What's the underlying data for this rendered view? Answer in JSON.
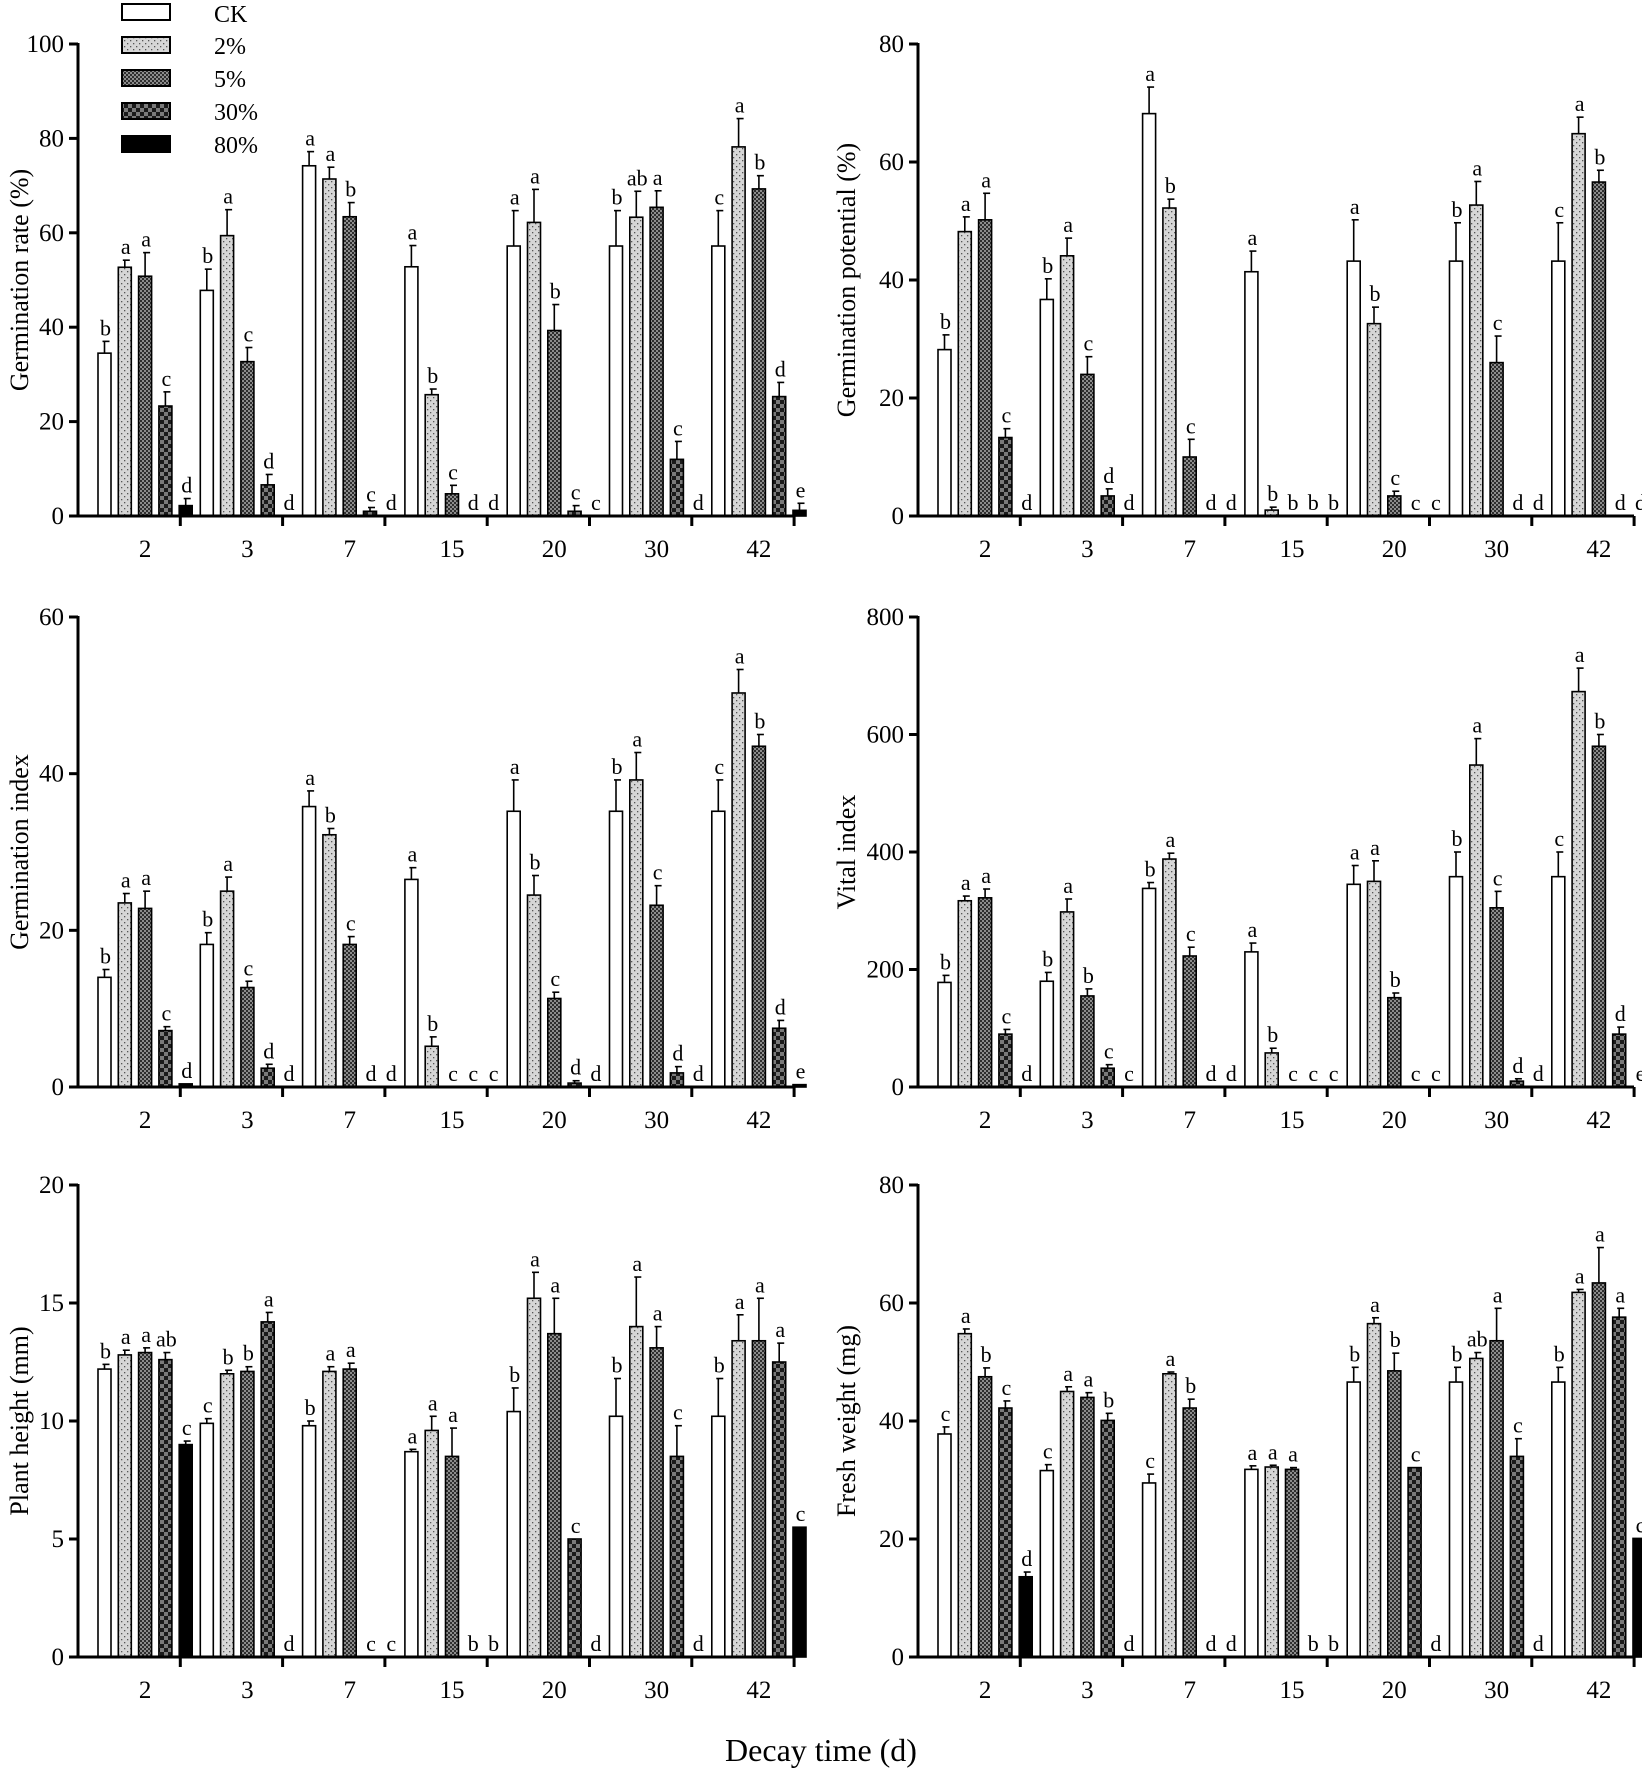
{
  "figure": {
    "xlabel": "Decay time (d)",
    "legend": {
      "position": "top-left",
      "entries": [
        {
          "label": "CK",
          "pattern": "pat-ck"
        },
        {
          "label": "2%",
          "pattern": "pat-2"
        },
        {
          "label": "5%",
          "pattern": "pat-5"
        },
        {
          "label": "30%",
          "pattern": "pat-30"
        },
        {
          "label": "80%",
          "pattern": "pat-80"
        }
      ]
    }
  },
  "chart_data": [
    {
      "type": "bar",
      "ylabel": "Germination rate (%)",
      "categories": [
        "2",
        "3",
        "7",
        "15",
        "20",
        "30",
        "42"
      ],
      "ylim": [
        0,
        100
      ],
      "yticks": [
        0,
        20,
        40,
        60,
        80,
        100
      ],
      "series": [
        {
          "name": "CK",
          "values": [
            34.5,
            47.8,
            74.2,
            52.8,
            57.2,
            57.2,
            57.2
          ],
          "errors": [
            2.5,
            4.5,
            3,
            4.5,
            7.5,
            7.5,
            7.5
          ],
          "labels": [
            "b",
            "b",
            "a",
            "a",
            "a",
            "b",
            "c"
          ]
        },
        {
          "name": "2%",
          "values": [
            52.7,
            59.4,
            71.4,
            25.7,
            62.2,
            63.3,
            78.2
          ],
          "errors": [
            1.5,
            5.5,
            2.5,
            1.2,
            7,
            5.5,
            6
          ],
          "labels": [
            "a",
            "a",
            "a",
            "b",
            "a",
            "ab",
            "a"
          ]
        },
        {
          "name": "5%",
          "values": [
            50.8,
            32.7,
            63.4,
            4.7,
            39.3,
            65.4,
            69.3
          ],
          "errors": [
            5,
            3,
            3,
            1.8,
            5.5,
            3.5,
            2.8
          ],
          "labels": [
            "a",
            "c",
            "b",
            "c",
            "b",
            "a",
            "b"
          ]
        },
        {
          "name": "30%",
          "values": [
            23.3,
            6.6,
            1.0,
            0,
            1.0,
            12.0,
            25.3
          ],
          "errors": [
            3,
            2.2,
            0.8,
            0,
            1.2,
            3.8,
            3
          ],
          "labels": [
            "c",
            "d",
            "c",
            "d",
            "c",
            "c",
            "d"
          ]
        },
        {
          "name": "80%",
          "values": [
            2.2,
            0,
            0,
            0,
            0,
            0,
            1.2
          ],
          "errors": [
            1.5,
            0,
            0,
            0,
            0,
            0,
            1.5
          ],
          "labels": [
            "d",
            "d",
            "d",
            "d",
            "c",
            "d",
            "e"
          ]
        }
      ]
    },
    {
      "type": "bar",
      "ylabel": "Germination potential (%)",
      "categories": [
        "2",
        "3",
        "7",
        "15",
        "20",
        "30",
        "42"
      ],
      "ylim": [
        0,
        80
      ],
      "yticks": [
        0,
        20,
        40,
        60,
        80
      ],
      "series": [
        {
          "name": "CK",
          "values": [
            28.2,
            36.7,
            68.2,
            41.4,
            43.2,
            43.2,
            43.2
          ],
          "errors": [
            2.5,
            3.5,
            4.5,
            3.5,
            7,
            6.5,
            6.5
          ],
          "labels": [
            "b",
            "b",
            "a",
            "a",
            "a",
            "b",
            "c"
          ]
        },
        {
          "name": "2%",
          "values": [
            48.2,
            44.1,
            52.2,
            1.0,
            32.6,
            52.7,
            64.8
          ],
          "errors": [
            2.5,
            3,
            1.5,
            0.5,
            2.8,
            4,
            2.8
          ],
          "labels": [
            "a",
            "a",
            "b",
            "b",
            "b",
            "a",
            "a"
          ]
        },
        {
          "name": "5%",
          "values": [
            50.2,
            24.0,
            10.0,
            0,
            3.4,
            26.0,
            56.6
          ],
          "errors": [
            4.5,
            3,
            3,
            0,
            0.8,
            4.5,
            2
          ],
          "labels": [
            "a",
            "c",
            "c",
            "b",
            "c",
            "c",
            "b"
          ]
        },
        {
          "name": "30%",
          "values": [
            13.3,
            3.4,
            0,
            0,
            0,
            0,
            0
          ],
          "errors": [
            1.5,
            1.2,
            0,
            0,
            0,
            0,
            0
          ],
          "labels": [
            "c",
            "d",
            "d",
            "b",
            "c",
            "d",
            "d"
          ]
        },
        {
          "name": "80%",
          "values": [
            0,
            0,
            0,
            0,
            0,
            0,
            0
          ],
          "errors": [
            0,
            0,
            0,
            0,
            0,
            0,
            0
          ],
          "labels": [
            "d",
            "d",
            "d",
            "b",
            "c",
            "d",
            "d"
          ]
        }
      ]
    },
    {
      "type": "bar",
      "ylabel": "Germination index",
      "categories": [
        "2",
        "3",
        "7",
        "15",
        "20",
        "30",
        "42"
      ],
      "ylim": [
        0,
        60
      ],
      "yticks": [
        0,
        20,
        40,
        60
      ],
      "series": [
        {
          "name": "CK",
          "values": [
            14.0,
            18.2,
            35.8,
            26.5,
            35.2,
            35.2,
            35.2
          ],
          "errors": [
            1,
            1.5,
            2,
            1.5,
            4,
            4,
            4
          ],
          "labels": [
            "b",
            "b",
            "a",
            "a",
            "a",
            "b",
            "c"
          ]
        },
        {
          "name": "2%",
          "values": [
            23.5,
            25.0,
            32.2,
            5.2,
            24.5,
            39.2,
            50.3
          ],
          "errors": [
            1.2,
            1.8,
            0.8,
            1.2,
            2.5,
            3.5,
            3
          ],
          "labels": [
            "a",
            "a",
            "b",
            "b",
            "b",
            "a",
            "a"
          ]
        },
        {
          "name": "5%",
          "values": [
            22.8,
            12.7,
            18.2,
            0,
            11.3,
            23.2,
            43.5
          ],
          "errors": [
            2.2,
            0.8,
            1,
            0,
            0.8,
            2.5,
            1.5
          ],
          "labels": [
            "a",
            "c",
            "c",
            "c",
            "c",
            "c",
            "b"
          ]
        },
        {
          "name": "30%",
          "values": [
            7.2,
            2.4,
            0,
            0,
            0.5,
            1.8,
            7.5
          ],
          "errors": [
            0.5,
            0.5,
            0,
            0,
            0.3,
            0.8,
            1
          ],
          "labels": [
            "c",
            "d",
            "d",
            "c",
            "d",
            "d",
            "d"
          ]
        },
        {
          "name": "80%",
          "values": [
            0.4,
            0,
            0,
            0,
            0,
            0,
            0.3
          ],
          "errors": [
            0,
            0,
            0,
            0,
            0,
            0,
            0
          ],
          "labels": [
            "d",
            "d",
            "d",
            "c",
            "d",
            "d",
            "e"
          ]
        }
      ]
    },
    {
      "type": "bar",
      "ylabel": "Vital  index",
      "categories": [
        "2",
        "3",
        "7",
        "15",
        "20",
        "30",
        "42"
      ],
      "ylim": [
        0,
        800
      ],
      "yticks": [
        0,
        200,
        400,
        600,
        800
      ],
      "series": [
        {
          "name": "CK",
          "values": [
            178,
            180,
            338,
            230,
            345,
            358,
            358
          ],
          "errors": [
            12,
            15,
            10,
            15,
            32,
            42,
            42
          ],
          "labels": [
            "b",
            "b",
            "b",
            "a",
            "a",
            "b",
            "c"
          ]
        },
        {
          "name": "2%",
          "values": [
            317,
            298,
            388,
            58,
            350,
            548,
            673
          ],
          "errors": [
            8,
            22,
            10,
            8,
            35,
            45,
            40
          ],
          "labels": [
            "a",
            "a",
            "a",
            "b",
            "a",
            "a",
            "a"
          ]
        },
        {
          "name": "5%",
          "values": [
            322,
            155,
            223,
            0,
            152,
            305,
            580
          ],
          "errors": [
            15,
            12,
            15,
            0,
            8,
            28,
            20
          ],
          "labels": [
            "a",
            "b",
            "c",
            "c",
            "b",
            "c",
            "b"
          ]
        },
        {
          "name": "30%",
          "values": [
            90,
            32,
            0,
            0,
            0,
            10,
            90
          ],
          "errors": [
            8,
            6,
            0,
            0,
            0,
            4,
            12
          ],
          "labels": [
            "c",
            "c",
            "d",
            "c",
            "c",
            "d",
            "d"
          ]
        },
        {
          "name": "80%",
          "values": [
            0,
            0,
            0,
            0,
            0,
            0,
            0
          ],
          "errors": [
            0,
            0,
            0,
            0,
            0,
            0,
            0
          ],
          "labels": [
            "d",
            "c",
            "d",
            "c",
            "c",
            "d",
            "e"
          ]
        }
      ]
    },
    {
      "type": "bar",
      "ylabel": "Plant height (mm)",
      "categories": [
        "2",
        "3",
        "7",
        "15",
        "20",
        "30",
        "42"
      ],
      "ylim": [
        0,
        20
      ],
      "yticks": [
        0,
        5,
        10,
        15,
        20
      ],
      "series": [
        {
          "name": "CK",
          "values": [
            12.2,
            9.9,
            9.8,
            8.7,
            10.4,
            10.2,
            10.2
          ],
          "errors": [
            0.2,
            0.2,
            0.2,
            0.1,
            1,
            1.6,
            1.6
          ],
          "labels": [
            "b",
            "c",
            "b",
            "a",
            "b",
            "b",
            "b"
          ]
        },
        {
          "name": "2%",
          "values": [
            12.8,
            12.0,
            12.1,
            9.6,
            15.2,
            14.0,
            13.4
          ],
          "errors": [
            0.2,
            0.15,
            0.2,
            0.6,
            1.1,
            2.1,
            1.1
          ],
          "labels": [
            "a",
            "b",
            "a",
            "a",
            "a",
            "a",
            "a"
          ]
        },
        {
          "name": "5%",
          "values": [
            12.9,
            12.1,
            12.2,
            8.5,
            13.7,
            13.1,
            13.4
          ],
          "errors": [
            0.2,
            0.2,
            0.25,
            1.2,
            1.5,
            0.9,
            1.8
          ],
          "labels": [
            "a",
            "b",
            "a",
            "a",
            "a",
            "a",
            "a"
          ]
        },
        {
          "name": "30%",
          "values": [
            12.6,
            14.2,
            0,
            0,
            5.0,
            8.5,
            12.5
          ],
          "errors": [
            0.3,
            0.4,
            0,
            0,
            0,
            1.3,
            0.8
          ],
          "labels": [
            "ab",
            "a",
            "c",
            "b",
            "c",
            "c",
            "a"
          ]
        },
        {
          "name": "80%",
          "values": [
            9.0,
            0,
            0,
            0,
            0,
            0,
            5.5
          ],
          "errors": [
            0.15,
            0,
            0,
            0,
            0,
            0,
            0
          ],
          "labels": [
            "c",
            "d",
            "c",
            "b",
            "d",
            "d",
            "c"
          ]
        }
      ]
    },
    {
      "type": "bar",
      "ylabel": "Fresh weight (mg)",
      "categories": [
        "2",
        "3",
        "7",
        "15",
        "20",
        "30",
        "42"
      ],
      "ylim": [
        0,
        80
      ],
      "yticks": [
        0,
        20,
        40,
        60,
        80
      ],
      "series": [
        {
          "name": "CK",
          "values": [
            37.8,
            31.6,
            29.5,
            31.8,
            46.6,
            46.6,
            46.6
          ],
          "errors": [
            1.2,
            1,
            1.5,
            0.6,
            2.5,
            2.5,
            2.5
          ],
          "labels": [
            "c",
            "c",
            "c",
            "a",
            "b",
            "b",
            "b"
          ]
        },
        {
          "name": "2%",
          "values": [
            54.8,
            45.0,
            48.0,
            32.2,
            56.5,
            50.6,
            61.8
          ],
          "errors": [
            0.8,
            0.8,
            0.3,
            0.3,
            1,
            1,
            0.5
          ],
          "labels": [
            "a",
            "a",
            "a",
            "a",
            "a",
            "ab",
            "a"
          ]
        },
        {
          "name": "5%",
          "values": [
            47.5,
            44.0,
            42.2,
            31.8,
            48.5,
            53.6,
            63.4
          ],
          "errors": [
            1.5,
            0.8,
            1.5,
            0.3,
            3,
            5.5,
            6
          ],
          "labels": [
            "b",
            "a",
            "b",
            "a",
            "b",
            "a",
            "a"
          ]
        },
        {
          "name": "30%",
          "values": [
            42.2,
            40.1,
            0,
            0,
            32.1,
            34.0,
            57.6
          ],
          "errors": [
            1.2,
            1.2,
            0,
            0,
            0,
            3,
            1.5
          ],
          "labels": [
            "c",
            "b",
            "d",
            "b",
            "c",
            "c",
            "a"
          ]
        },
        {
          "name": "80%",
          "values": [
            13.6,
            0,
            0,
            0,
            0,
            0,
            20.1
          ],
          "errors": [
            0.8,
            0,
            0,
            0,
            0,
            0,
            0
          ],
          "labels": [
            "d",
            "d",
            "d",
            "b",
            "d",
            "d",
            "c"
          ]
        }
      ]
    }
  ]
}
